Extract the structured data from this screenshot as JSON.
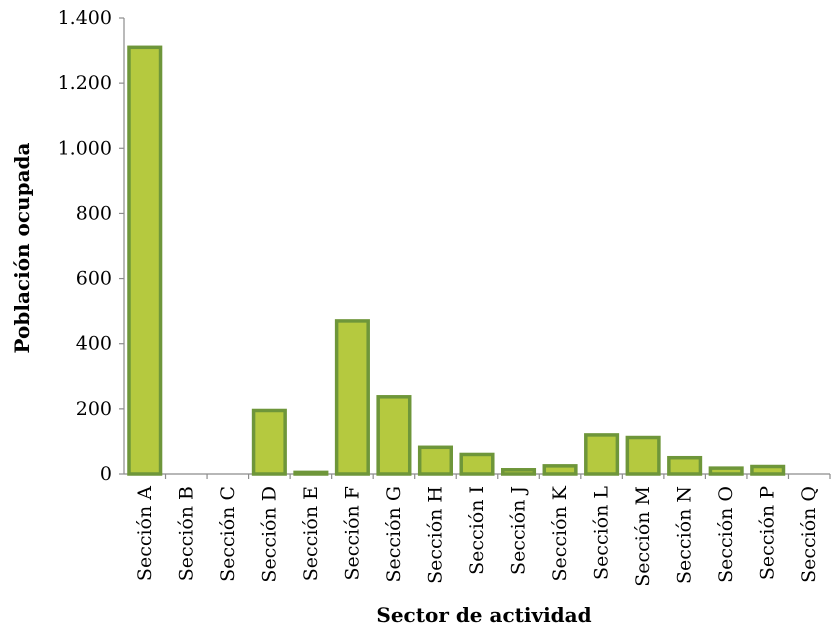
{
  "chart_data": {
    "type": "bar",
    "title": "",
    "xlabel": "Sector de actividad",
    "ylabel": "Población ocupada",
    "categories": [
      "Sección A",
      "Sección B",
      "Sección C",
      "Sección D",
      "Sección E",
      "Sección F",
      "Sección G",
      "Sección H",
      "Sección I",
      "Sección J",
      "Sección K",
      "Sección L",
      "Sección M",
      "Sección N",
      "Sección O",
      "Sección P",
      "Sección Q"
    ],
    "values": [
      1310,
      0,
      0,
      195,
      5,
      470,
      237,
      82,
      60,
      13,
      25,
      120,
      112,
      50,
      18,
      23,
      0
    ],
    "ylim": [
      0,
      1400
    ],
    "yticks": [
      0,
      200,
      400,
      600,
      800,
      1000,
      1200,
      1400
    ],
    "ytick_labels": [
      "0",
      "200",
      "400",
      "600",
      "800",
      "1.000",
      "1.200",
      "1.400"
    ],
    "grid": false,
    "legend": "none",
    "colors": {
      "fill": "#b5c93f",
      "stroke": "#6e963a"
    }
  }
}
